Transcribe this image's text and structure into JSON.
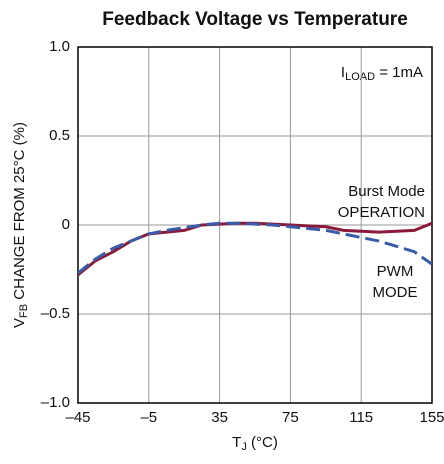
{
  "chart_data": {
    "type": "line",
    "title": "Feedback Voltage vs Temperature",
    "x_label": {
      "main": "T",
      "sub": "J",
      "rest": " (°C)"
    },
    "y_label": {
      "main": "V",
      "sub": "FB",
      "rest": " CHANGE FROM 25°C (%)"
    },
    "annotation": {
      "main": "I",
      "sub": "LOAD",
      "rest": " = 1mA"
    },
    "x": [
      -45,
      -35,
      -25,
      -15,
      -5,
      5,
      15,
      25,
      35,
      45,
      55,
      65,
      75,
      85,
      95,
      105,
      115,
      125,
      135,
      145,
      155
    ],
    "series": [
      {
        "name": [
          "Burst Mode",
          "OPERATION"
        ],
        "color": "#8b1a3a",
        "dashed": false,
        "values": [
          -0.28,
          -0.2,
          -0.15,
          -0.09,
          -0.05,
          -0.04,
          -0.03,
          0,
          0.005,
          0.01,
          0.01,
          0.005,
          0,
          -0.005,
          -0.01,
          -0.03,
          -0.035,
          -0.04,
          -0.035,
          -0.03,
          0.01
        ]
      },
      {
        "name": [
          "PWM",
          "MODE"
        ],
        "color": "#3a5ba8",
        "dashed": true,
        "values": [
          -0.27,
          -0.19,
          -0.13,
          -0.09,
          -0.05,
          -0.03,
          -0.015,
          0,
          0.01,
          0.01,
          0.005,
          0,
          -0.01,
          -0.02,
          -0.03,
          -0.05,
          -0.07,
          -0.09,
          -0.12,
          -0.15,
          -0.22
        ]
      }
    ],
    "xlim": [
      -45,
      155
    ],
    "xticks": [
      {
        "value": -45,
        "label": "–45"
      },
      {
        "value": -5,
        "label": "–5"
      },
      35,
      75,
      115,
      155
    ],
    "ylim": [
      -1,
      1
    ],
    "yticks": [
      {
        "value": -1,
        "label": "–1.0"
      },
      {
        "value": -0.5,
        "label": "–0.5"
      },
      0,
      0.5,
      {
        "value": 1,
        "label": "1.0"
      }
    ],
    "grid": true
  }
}
